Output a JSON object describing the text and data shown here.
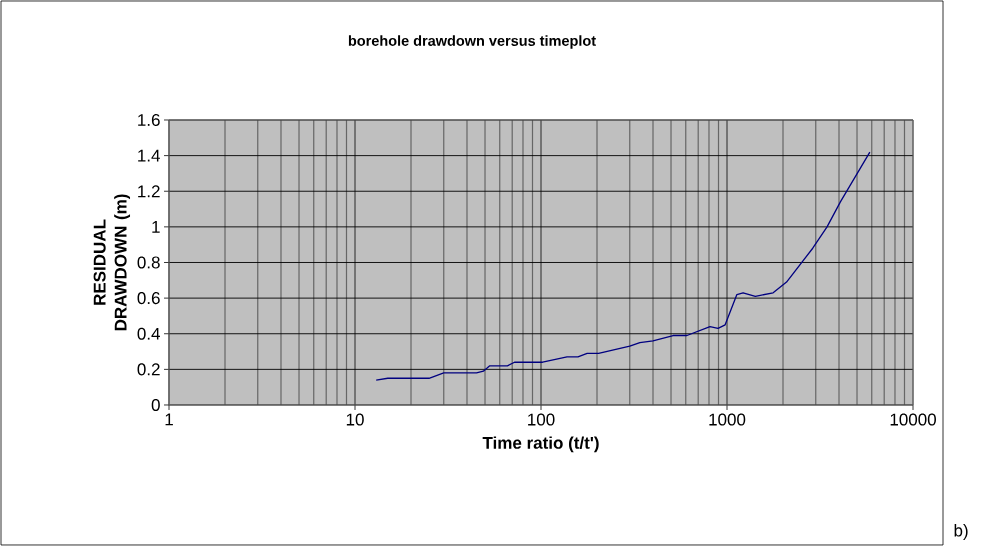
{
  "chart_data": {
    "type": "line",
    "title": "borehole drawdown versus timeplot",
    "xlabel": "Time ratio (t/t')",
    "ylabel": "RESIDUAL DRAWDOWN (m)",
    "annotations": [
      "b)"
    ],
    "x": [
      13,
      15,
      25,
      30,
      45,
      49,
      53,
      66,
      72,
      102,
      138,
      158,
      177,
      204,
      300,
      340,
      400,
      513,
      609,
      810,
      895,
      977,
      1130,
      1220,
      1420,
      1770,
      2090,
      2890,
      3450,
      4070,
      5860
    ],
    "series": [
      {
        "color": "#000080",
        "values": [
          0.14,
          0.15,
          0.15,
          0.18,
          0.18,
          0.19,
          0.22,
          0.22,
          0.24,
          0.24,
          0.27,
          0.27,
          0.29,
          0.29,
          0.33,
          0.35,
          0.36,
          0.39,
          0.39,
          0.44,
          0.43,
          0.45,
          0.62,
          0.63,
          0.61,
          0.63,
          0.69,
          0.88,
          1.0,
          1.14,
          1.42
        ]
      }
    ],
    "log": "x",
    "xlim": [
      1,
      10000
    ],
    "xticks": [
      1,
      10,
      100,
      1000,
      10000
    ],
    "ylim": [
      0,
      1.6
    ],
    "yticks": [
      0,
      0.2,
      0.4,
      0.6,
      0.8,
      1,
      1.2,
      1.4,
      1.6
    ],
    "grid": true,
    "line_style": "solid"
  }
}
